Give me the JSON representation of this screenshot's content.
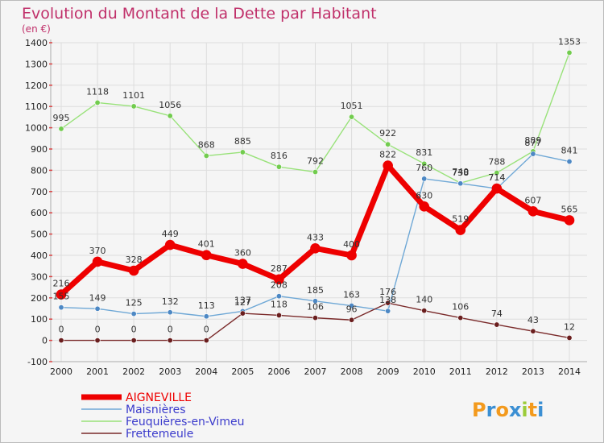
{
  "chart_data": {
    "type": "line",
    "title": "Evolution du Montant de la Dette par Habitant",
    "subtitle": "(en €)",
    "xlabel": "",
    "ylabel": "",
    "categories": [
      "2000",
      "2001",
      "2002",
      "2003",
      "2004",
      "2005",
      "2006",
      "2007",
      "2008",
      "2009",
      "2010",
      "2011",
      "2012",
      "2013",
      "2014"
    ],
    "ylim": [
      -100,
      1400
    ],
    "yticks": [
      -100,
      0,
      100,
      200,
      300,
      400,
      500,
      600,
      700,
      800,
      900,
      1000,
      1100,
      1200,
      1300,
      1400
    ],
    "grid": true,
    "legend_position": "bottom-left",
    "series": [
      {
        "name": "AIGNEVILLE",
        "color": "#ee0000",
        "values": [
          216,
          370,
          328,
          449,
          401,
          360,
          287,
          433,
          400,
          822,
          630,
          519,
          714,
          607,
          565
        ]
      },
      {
        "name": "Maisnières",
        "color": "#6fa8d6",
        "values": [
          155,
          149,
          125,
          132,
          113,
          137,
          208,
          185,
          163,
          138,
          760,
          738,
          714,
          877,
          841
        ]
      },
      {
        "name": "Feuquières-en-Vimeu",
        "color": "#99e27a",
        "values": [
          995,
          1118,
          1101,
          1056,
          868,
          885,
          816,
          792,
          1051,
          922,
          831,
          740,
          788,
          889,
          1353
        ]
      },
      {
        "name": "Frettemeule",
        "color": "#7a2a2a",
        "values": [
          0,
          0,
          0,
          0,
          0,
          127,
          118,
          106,
          96,
          176,
          140,
          106,
          74,
          43,
          12
        ]
      }
    ]
  },
  "logo": {
    "text": "Proxiti"
  }
}
